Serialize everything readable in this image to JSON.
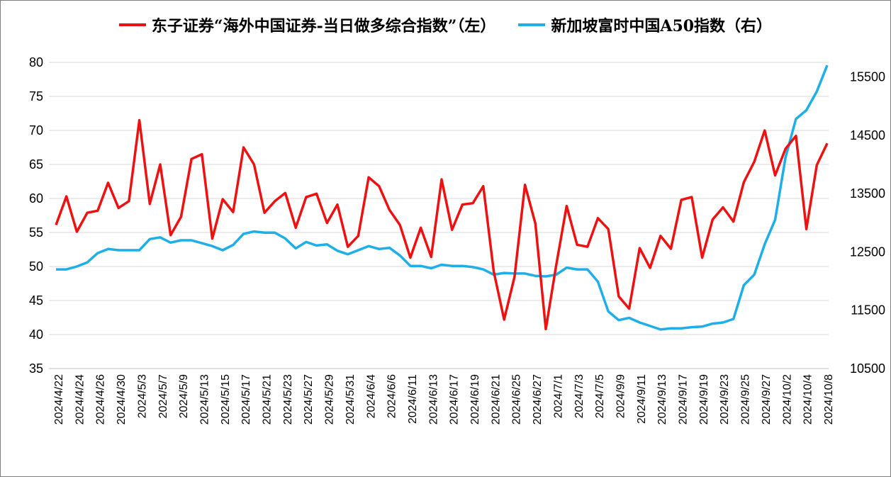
{
  "chart_data": {
    "type": "line",
    "title": "",
    "legend_position": "top",
    "grid": true,
    "colors": {
      "left_series": "#ee1111",
      "right_series": "#1eaee8",
      "grid": "#d9d9d9",
      "axis": "#000000"
    },
    "left_axis": {
      "ylim": [
        35,
        80
      ],
      "ticks": [
        "80",
        "75",
        "70",
        "65",
        "60",
        "55",
        "50",
        "45",
        "40",
        "35"
      ]
    },
    "right_axis": {
      "ylim": [
        10500,
        15750
      ],
      "ticks": [
        "15500",
        "14500",
        "13500",
        "12500",
        "11500",
        "10500"
      ]
    },
    "x_tick_labels": [
      "2024/4/22",
      "2024/4/24",
      "2024/4/26",
      "2024/4/30",
      "2024/5/3",
      "2024/5/7",
      "2024/5/9",
      "2024/5/13",
      "2024/5/15",
      "2024/5/17",
      "2024/5/21",
      "2024/5/23",
      "2024/5/27",
      "2024/5/29",
      "2024/5/31",
      "2024/6/4",
      "2024/6/6",
      "2024/6/11",
      "2024/6/13",
      "2024/6/17",
      "2024/6/19",
      "2024/6/21",
      "2024/6/25",
      "2024/6/27",
      "2024/7/1",
      "2024/7/3",
      "2024/7/5",
      "2024/9/9",
      "2024/9/11",
      "2024/9/13",
      "2024/9/17",
      "2024/9/19",
      "2024/9/23",
      "2024/9/25",
      "2024/9/27",
      "2024/10/2",
      "2024/10/4",
      "2024/10/8"
    ],
    "series": [
      {
        "name": "东子证券“海外中国证券-当日做多综合指数”（左）",
        "axis": "left",
        "values": [
          56.1,
          60.3,
          55.1,
          57.9,
          58.2,
          62.3,
          58.6,
          59.6,
          71.5,
          59.2,
          65.0,
          54.6,
          57.3,
          65.8,
          66.5,
          54.1,
          59.9,
          58.0,
          67.5,
          65.0,
          57.9,
          59.6,
          60.8,
          55.7,
          60.2,
          60.7,
          56.4,
          59.1,
          52.9,
          54.5,
          63.1,
          61.8,
          58.3,
          56.1,
          51.3,
          55.7,
          51.4,
          62.8,
          55.4,
          59.1,
          59.3,
          61.8,
          49.3,
          42.2,
          48.5,
          62.0,
          56.3,
          40.8,
          50.2,
          58.9,
          53.2,
          52.9,
          57.1,
          55.5,
          45.6,
          43.8,
          52.7,
          49.8,
          54.5,
          52.6,
          59.8,
          60.2,
          51.3,
          56.9,
          58.7,
          56.6,
          62.4,
          65.4,
          70.0,
          63.4,
          67.3,
          69.2,
          55.5,
          64.9,
          68.1
        ]
      },
      {
        "name": "新加坡富时中国A50指数（右）",
        "axis": "right",
        "values": [
          12200,
          12200,
          12250,
          12320,
          12480,
          12550,
          12530,
          12530,
          12530,
          12720,
          12750,
          12660,
          12700,
          12700,
          12650,
          12600,
          12530,
          12620,
          12810,
          12850,
          12830,
          12830,
          12730,
          12560,
          12670,
          12610,
          12630,
          12520,
          12460,
          12530,
          12600,
          12550,
          12570,
          12440,
          12260,
          12260,
          12220,
          12280,
          12260,
          12260,
          12240,
          12200,
          12110,
          12140,
          12130,
          12130,
          12090,
          12080,
          12110,
          12230,
          12200,
          12200,
          11990,
          11480,
          11330,
          11370,
          11290,
          11230,
          11170,
          11190,
          11190,
          11210,
          11220,
          11270,
          11290,
          11350,
          11930,
          12110,
          12630,
          13050,
          14120,
          14780,
          14930,
          15250,
          15700
        ]
      }
    ]
  }
}
